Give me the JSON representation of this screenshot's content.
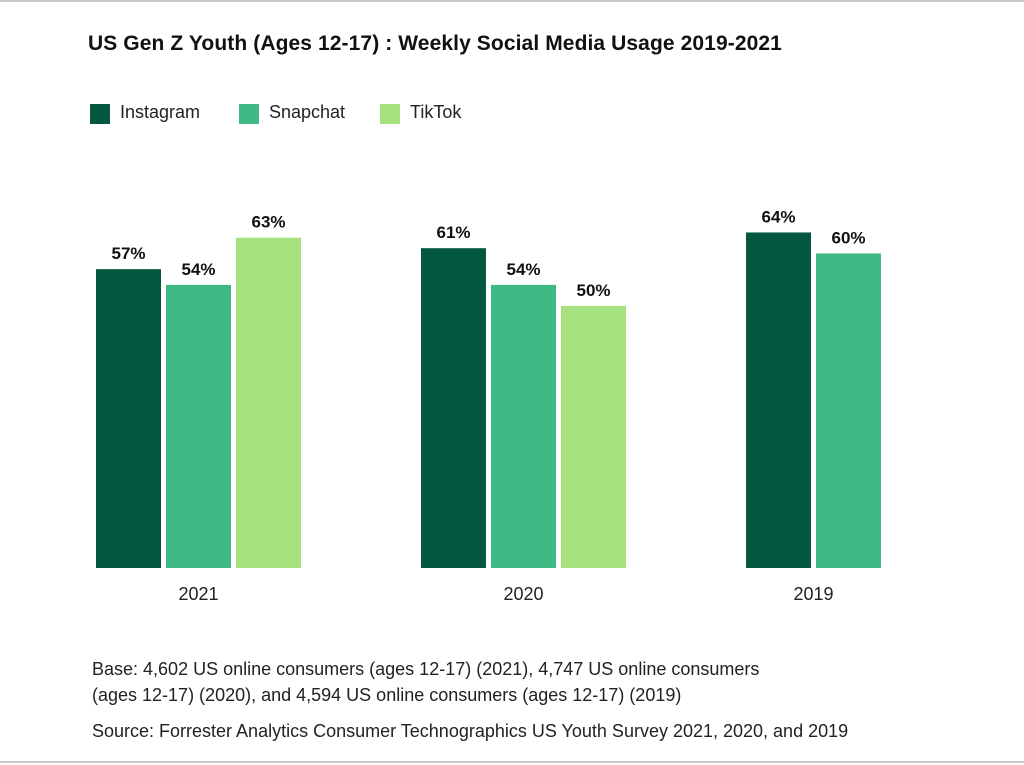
{
  "colors": {
    "instagram": "#03563f",
    "snapchat": "#3fba84",
    "tiktok": "#a6e27f",
    "frame": "#c9c9c9"
  },
  "chart_data": {
    "type": "bar",
    "title": "US Gen Z Youth (Ages 12-17) : Weekly Social Media Usage 2019-2021",
    "xlabel": "",
    "ylabel": "",
    "ylim": [
      0,
      70
    ],
    "grid": false,
    "legend_position": "top-left",
    "categories": [
      "2021",
      "2020",
      "2019"
    ],
    "series": [
      {
        "name": "Instagram",
        "color": "#03563f",
        "values": [
          57,
          61,
          64
        ],
        "labels": [
          "57%",
          "61%",
          "64%"
        ]
      },
      {
        "name": "Snapchat",
        "color": "#3fba84",
        "values": [
          54,
          54,
          60
        ],
        "labels": [
          "54%",
          "54%",
          "60%"
        ]
      },
      {
        "name": "TikTok",
        "color": "#a6e27f",
        "values": [
          63,
          50,
          null
        ],
        "labels": [
          "63%",
          "50%",
          null
        ]
      }
    ]
  },
  "legend": {
    "items": [
      {
        "label": "Instagram",
        "icon": "square-swatch"
      },
      {
        "label": "Snapchat",
        "icon": "square-swatch"
      },
      {
        "label": "TikTok",
        "icon": "square-swatch"
      }
    ]
  },
  "notes": {
    "base_line_1": "Base: 4,602 US online consumers (ages 12-17) (2021), 4,747 US online consumers",
    "base_line_2": "(ages 12-17) (2020), and 4,594 US online consumers (ages 12-17) (2019)",
    "source": "Source: Forrester Analytics Consumer Technographics US Youth Survey 2021, 2020, and 2019"
  }
}
